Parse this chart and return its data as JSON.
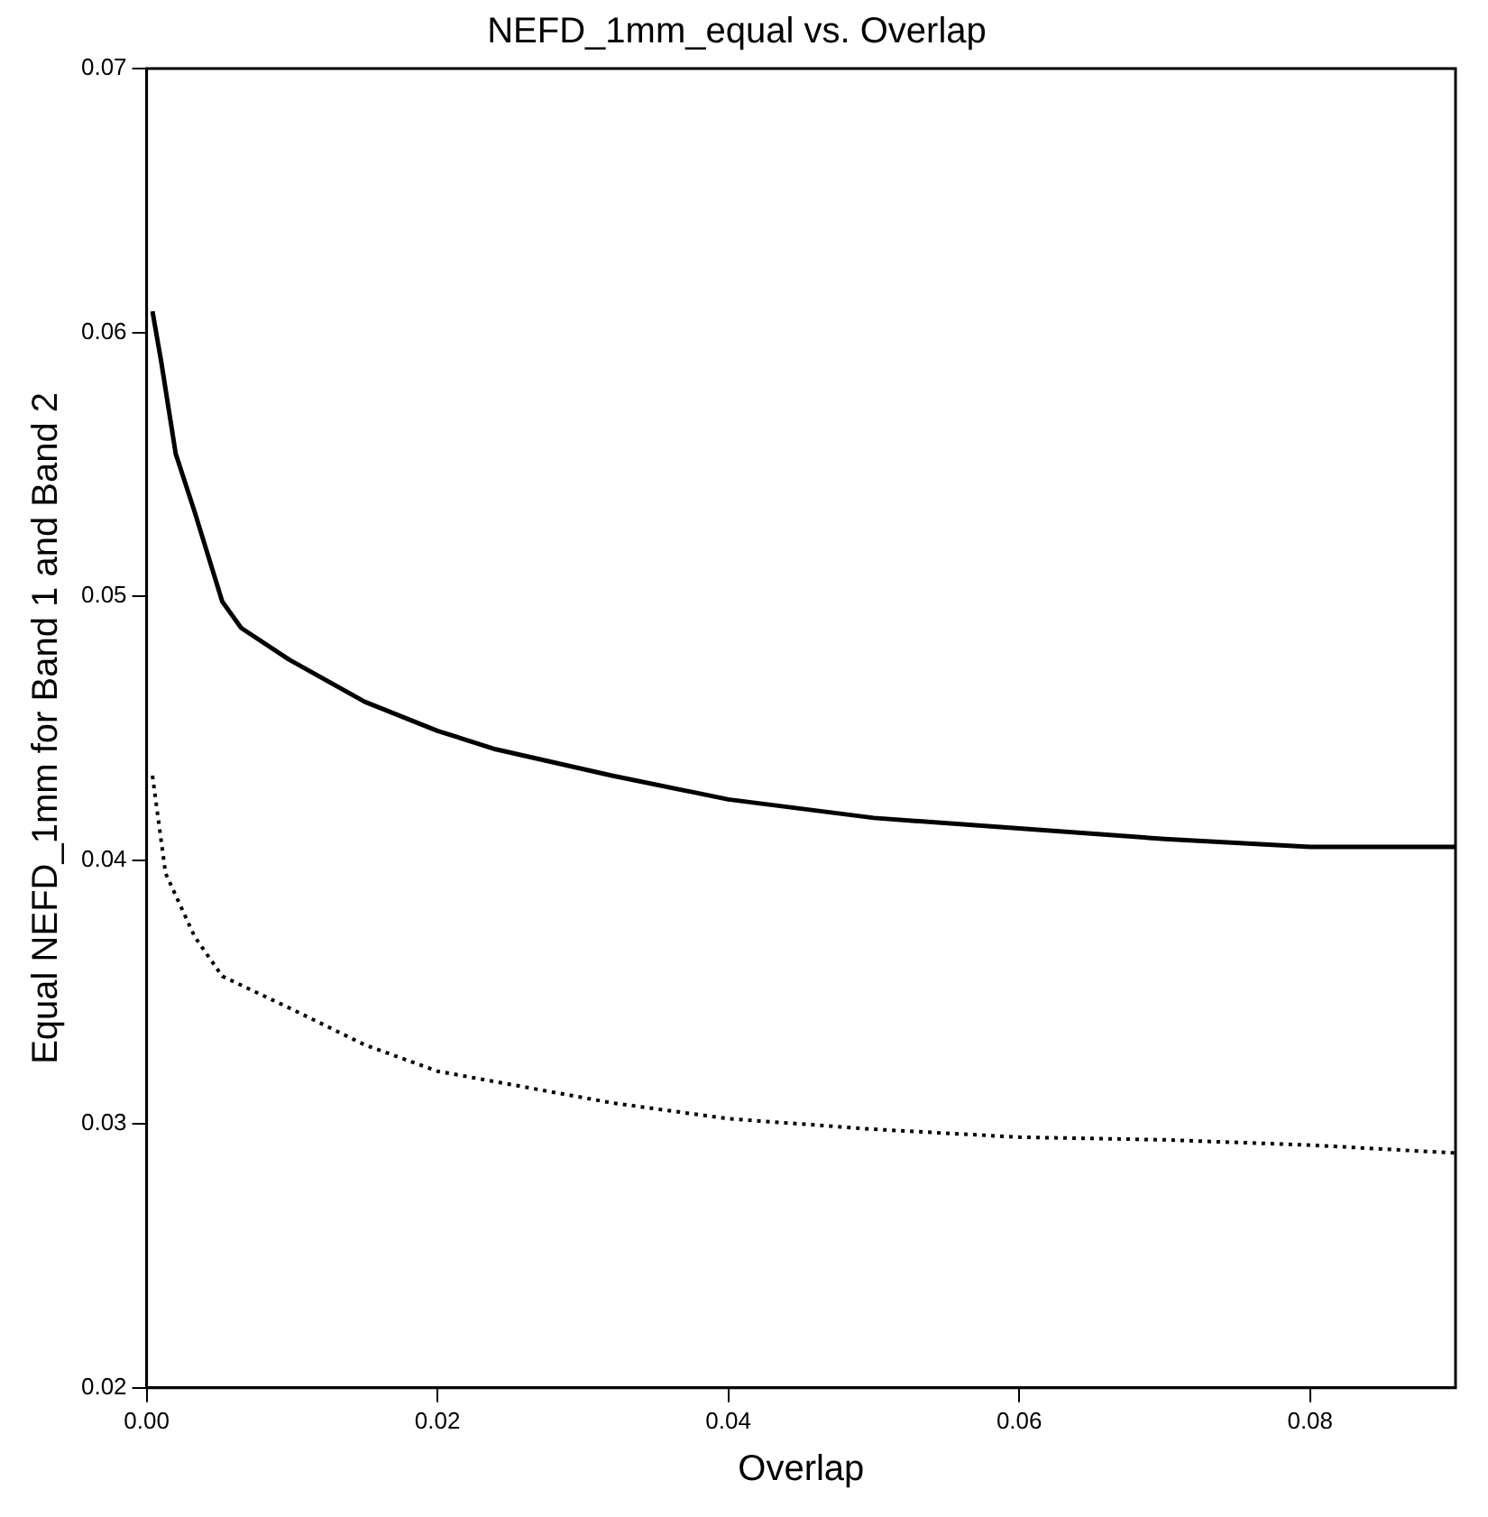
{
  "chart_data": {
    "type": "line",
    "title": "NEFD_1mm_equal vs. Overlap",
    "xlabel": "Overlap",
    "ylabel": "Equal NEFD_1mm for Band 1 and Band 2",
    "xlim": [
      0,
      0.09
    ],
    "xticks": [
      {
        "value": 0,
        "label": "0.00"
      },
      0.02,
      0.04,
      0.06,
      0.08
    ],
    "ylim": [
      0.02,
      0.07
    ],
    "yticks": [
      0.02,
      0.03,
      0.04,
      0.05,
      0.06,
      0.07
    ],
    "grid": false,
    "legend": false,
    "marker": "none",
    "series": [
      {
        "color": "#000000",
        "line_style": "solid",
        "x": [
          0.0004,
          0.001,
          0.002,
          0.0033,
          0.0052,
          0.0065,
          0.0098,
          0.015,
          0.02,
          0.024,
          0.032,
          0.04,
          0.05,
          0.06,
          0.07,
          0.08,
          0.09
        ],
        "values": [
          0.0608,
          0.0589,
          0.0554,
          0.0532,
          0.0498,
          0.0488,
          0.0476,
          0.046,
          0.0449,
          0.0442,
          0.0432,
          0.0423,
          0.0416,
          0.0412,
          0.0408,
          0.0405,
          0.0405
        ]
      },
      {
        "color": "#000000",
        "line_style": "dotted",
        "x": [
          0.0004,
          0.0013,
          0.0033,
          0.0052,
          0.0098,
          0.015,
          0.02,
          0.024,
          0.032,
          0.04,
          0.05,
          0.06,
          0.07,
          0.08,
          0.09
        ],
        "values": [
          0.0432,
          0.0395,
          0.0371,
          0.0356,
          0.0344,
          0.033,
          0.032,
          0.0316,
          0.0308,
          0.0302,
          0.0298,
          0.0295,
          0.0294,
          0.0292,
          0.0289
        ]
      }
    ]
  }
}
